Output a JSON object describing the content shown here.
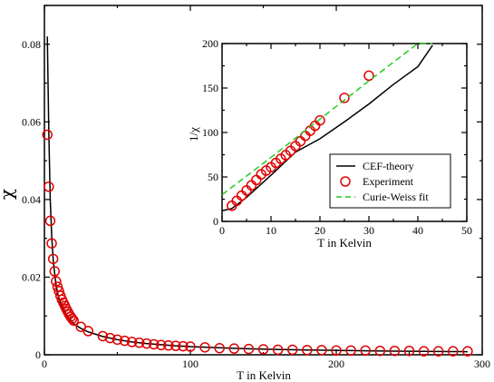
{
  "chart_data": [
    {
      "type": "scatter",
      "xlabel": "T in Kelvin",
      "ylabel": "χ",
      "xlim": [
        0,
        300
      ],
      "ylim": [
        0,
        0.09
      ],
      "xticks": [
        "0",
        "100",
        "200",
        "300"
      ],
      "yticks": [
        "0",
        "0.02",
        "0.04",
        "0.06",
        "0.08"
      ],
      "grid": false,
      "series": [
        {
          "kind": "line",
          "color": "#000000",
          "x": [
            2,
            3,
            4,
            5,
            6,
            7,
            8,
            9,
            10,
            12,
            14,
            16,
            18,
            20,
            25,
            30,
            40,
            50,
            60,
            70,
            80,
            90,
            100,
            120,
            140,
            160,
            180,
            200,
            220,
            240,
            260,
            280,
            290
          ],
          "y": [
            0.082,
            0.0575,
            0.04,
            0.0305,
            0.0245,
            0.021,
            0.018,
            0.016,
            0.0145,
            0.0125,
            0.011,
            0.0098,
            0.0089,
            0.008,
            0.0068,
            0.0059,
            0.0047,
            0.0039,
            0.0033,
            0.0029,
            0.0026,
            0.0023,
            0.0021,
            0.0018,
            0.00155,
            0.00138,
            0.00124,
            0.00113,
            0.00103,
            0.00095,
            0.00088,
            0.00082,
            0.0008
          ]
        },
        {
          "kind": "markers",
          "marker": "open-circle",
          "color": "#e00000",
          "x": [
            2,
            3,
            4,
            5,
            6,
            7,
            8,
            9,
            10,
            11,
            12,
            13,
            14,
            15,
            16,
            17,
            18,
            19,
            20,
            25,
            30,
            40,
            45,
            50,
            55,
            60,
            65,
            70,
            75,
            80,
            85,
            90,
            95,
            100,
            110,
            120,
            130,
            140,
            150,
            160,
            170,
            180,
            190,
            200,
            210,
            220,
            230,
            240,
            250,
            260,
            270,
            280,
            290
          ],
          "y": [
            0.0567,
            0.0433,
            0.0345,
            0.0287,
            0.0247,
            0.0215,
            0.0189,
            0.0175,
            0.0164,
            0.0152,
            0.0142,
            0.0134,
            0.0126,
            0.0118,
            0.0111,
            0.0104,
            0.0098,
            0.0093,
            0.0088,
            0.0072,
            0.0061,
            0.0048,
            0.0043,
            0.0039,
            0.0036,
            0.0033,
            0.0031,
            0.0029,
            0.0027,
            0.0025,
            0.0024,
            0.0023,
            0.0022,
            0.0021,
            0.0019,
            0.0017,
            0.0016,
            0.0015,
            0.0014,
            0.0013,
            0.0013,
            0.0012,
            0.0012,
            0.0011,
            0.0011,
            0.0011,
            0.001,
            0.001,
            0.001,
            0.0009,
            0.0009,
            0.0009,
            0.0009
          ]
        }
      ]
    },
    {
      "type": "scatter",
      "xlabel": "T in Kelvin",
      "ylabel": "1/χ",
      "xlim": [
        0,
        50
      ],
      "ylim": [
        0,
        200
      ],
      "xticks": [
        "0",
        "10",
        "20",
        "30",
        "40",
        "50"
      ],
      "yticks": [
        "0",
        "50",
        "100",
        "150",
        "200"
      ],
      "grid": false,
      "legend_position": "bottom-right",
      "series": [
        {
          "name": "CEF-theory",
          "kind": "line",
          "color": "#000000",
          "x": [
            0,
            2,
            5,
            10,
            15,
            20,
            25,
            30,
            35,
            40,
            43
          ],
          "y": [
            12,
            14.5,
            27,
            52,
            78,
            93,
            112,
            132,
            154,
            174,
            198
          ]
        },
        {
          "name": "Experiment",
          "kind": "markers",
          "marker": "open-circle",
          "color": "#e00000",
          "x": [
            2,
            3,
            4,
            5,
            6,
            7,
            8,
            9,
            10,
            11,
            12,
            13,
            14,
            15,
            16,
            17,
            18,
            19,
            20,
            25,
            30
          ],
          "y": [
            17.6,
            23.1,
            29.0,
            34.8,
            40.5,
            46.5,
            52.9,
            57.1,
            61.0,
            65.8,
            70.4,
            74.6,
            79.4,
            84.7,
            90.1,
            96.2,
            102.0,
            107.5,
            113.6,
            138.9,
            163.9
          ]
        },
        {
          "name": "Curie-Weiss fit",
          "kind": "dashed-line",
          "color": "#22cc22",
          "x": [
            0,
            10,
            20,
            30,
            40,
            43
          ],
          "y": [
            30,
            72,
            115,
            158,
            200,
            200
          ]
        }
      ]
    }
  ]
}
